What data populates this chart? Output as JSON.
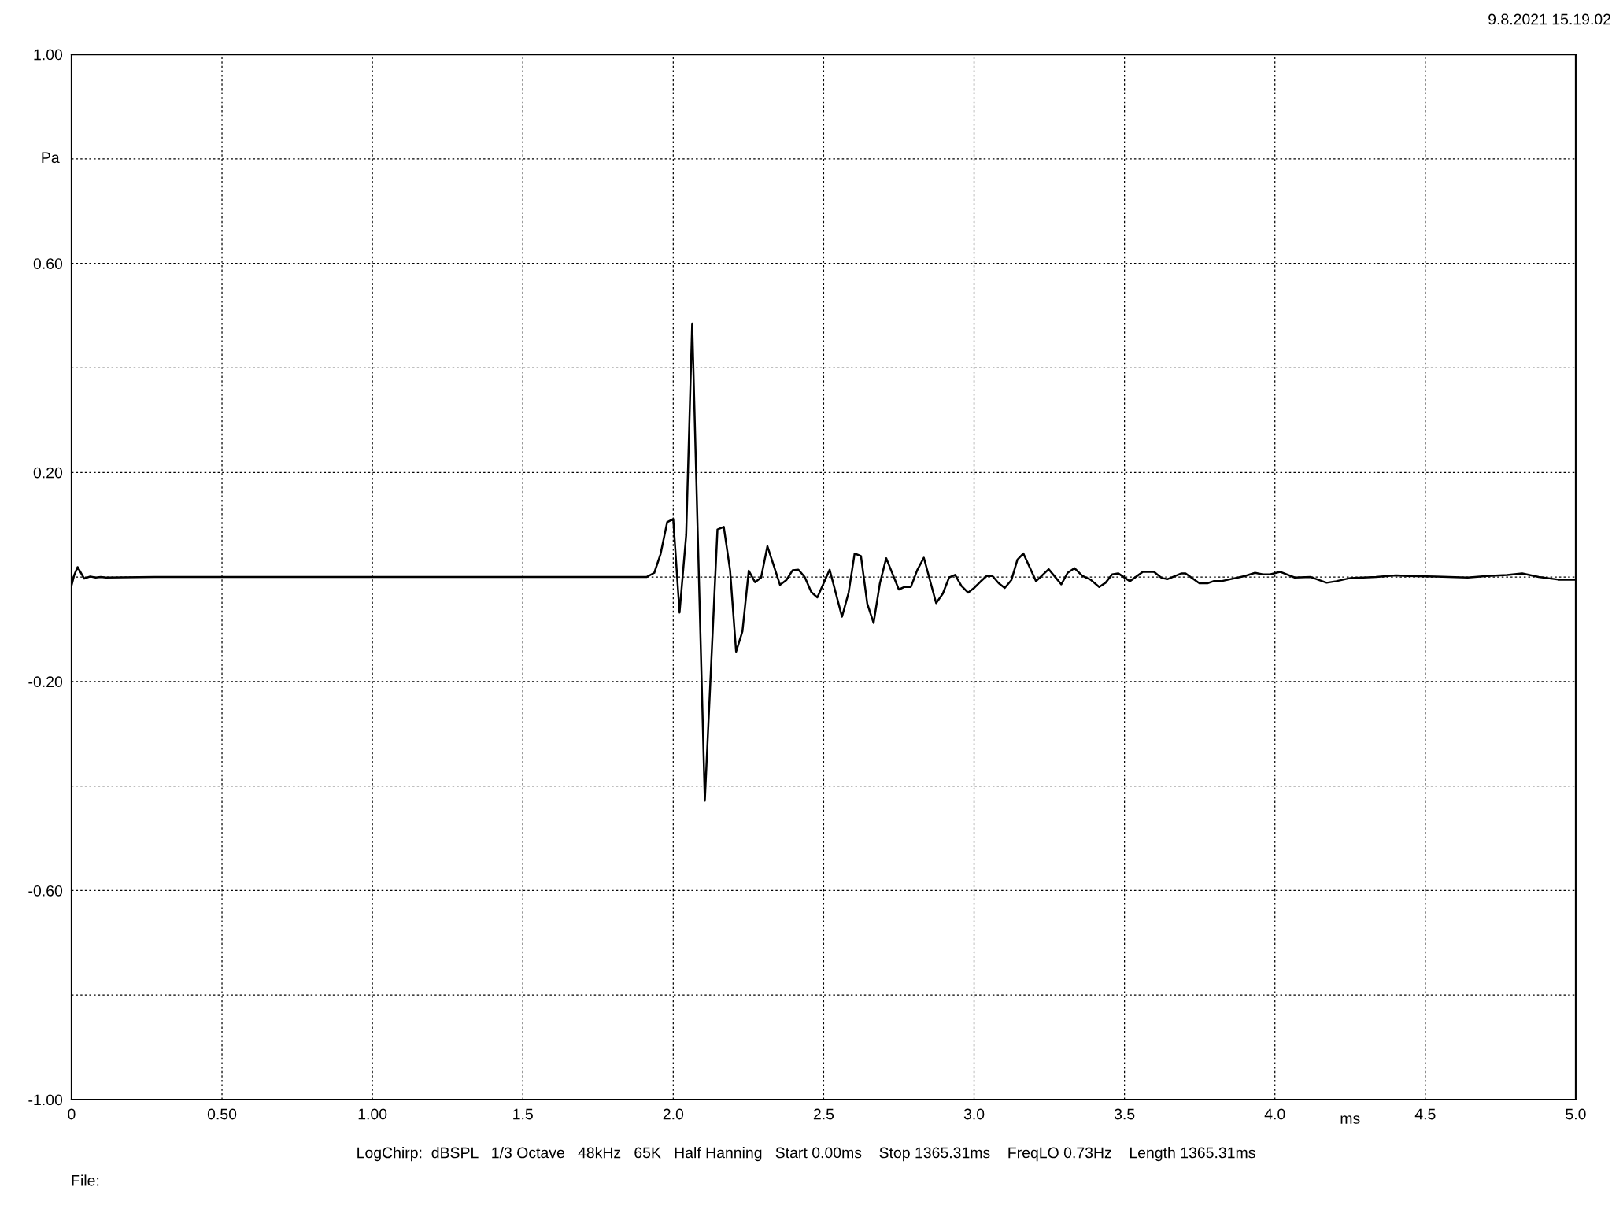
{
  "chart_data": {
    "type": "line",
    "xlabel": "ms",
    "ylabel": "Pa",
    "annotations": [
      "9.8.2021 15.19.02",
      "LogChirp:  dBSPL   1/3 Octave   48kHz   65K   Half Hanning   Start 0.00ms    Stop 1365.31ms    FreqLO 0.73Hz    Length 1365.31ms",
      "File:"
    ],
    "xlim": [
      0,
      5.0
    ],
    "ylim": [
      -1.0,
      1.0
    ],
    "xticks": [
      0,
      {
        "value": 0.5,
        "label": "0.50"
      },
      {
        "value": 1.0,
        "label": "1.00"
      },
      1.5,
      {
        "value": 2,
        "label": "2.0"
      },
      2.5,
      {
        "value": 3,
        "label": "3.0"
      },
      3.5,
      {
        "value": 4,
        "label": "4.0"
      },
      4.5,
      {
        "value": 5,
        "label": "5.0"
      }
    ],
    "yticks": [
      {
        "value": -1.0,
        "label": "-1.00"
      },
      {
        "value": -0.8,
        "label": null
      },
      {
        "value": -0.6,
        "label": "-0.60"
      },
      {
        "value": -0.4,
        "label": null
      },
      {
        "value": -0.2,
        "label": "-0.20"
      },
      {
        "value": 0,
        "label": null
      },
      {
        "value": 0.2,
        "label": "0.20"
      },
      {
        "value": 0.4,
        "label": null
      },
      {
        "value": 0.6,
        "label": "0.60"
      },
      {
        "value": 0.8,
        "label": null
      },
      {
        "value": 1.0,
        "label": "1.00"
      }
    ],
    "grid": true,
    "line_style": "solid",
    "marker": "none",
    "series": [
      {
        "color": "#000000",
        "x": [
          0,
          0.009,
          0.02,
          0.042,
          0.062,
          0.08,
          0.097,
          0.114,
          0.276,
          1.804,
          1.911,
          1.937,
          1.958,
          1.98,
          2.0,
          2.021,
          2.043,
          2.063,
          2.105,
          2.147,
          2.168,
          2.189,
          2.209,
          2.23,
          2.251,
          2.272,
          2.292,
          2.313,
          2.355,
          2.376,
          2.397,
          2.416,
          2.437,
          2.459,
          2.479,
          2.52,
          2.561,
          2.583,
          2.603,
          2.624,
          2.645,
          2.666,
          2.687,
          2.708,
          2.75,
          2.769,
          2.79,
          2.811,
          2.833,
          2.874,
          2.896,
          2.917,
          2.937,
          2.958,
          2.98,
          3.0,
          3.021,
          3.042,
          3.061,
          3.082,
          3.102,
          3.124,
          3.144,
          3.164,
          3.206,
          3.248,
          3.29,
          3.311,
          3.334,
          3.36,
          3.387,
          3.416,
          3.437,
          3.459,
          3.479,
          3.518,
          3.561,
          3.598,
          3.624,
          3.644,
          3.69,
          3.703,
          3.749,
          3.776,
          3.796,
          3.822,
          3.901,
          3.934,
          3.96,
          3.984,
          4.017,
          4.066,
          4.119,
          4.172,
          4.204,
          4.251,
          4.336,
          4.402,
          4.442,
          4.536,
          4.641,
          4.706,
          4.772,
          4.822,
          4.877,
          4.943,
          5.0
        ],
        "values": [
          -0.016,
          0.004,
          0.019,
          -0.003,
          0.001,
          -0.001,
          0,
          -0.001,
          0,
          0,
          0,
          0.008,
          0.044,
          0.105,
          0.111,
          -0.068,
          0.08,
          0.485,
          -0.428,
          0.091,
          0.096,
          0.013,
          -0.143,
          -0.104,
          0.012,
          -0.01,
          -0.001,
          0.059,
          -0.015,
          -0.006,
          0.013,
          0.014,
          0,
          -0.029,
          -0.039,
          0.014,
          -0.076,
          -0.03,
          0.045,
          0.04,
          -0.051,
          -0.088,
          -0.012,
          0.036,
          -0.024,
          -0.019,
          -0.019,
          0.013,
          0.037,
          -0.05,
          -0.032,
          -0.001,
          0.004,
          -0.017,
          -0.03,
          -0.021,
          -0.009,
          0.002,
          0.002,
          -0.012,
          -0.021,
          -0.006,
          0.033,
          0.045,
          -0.008,
          0.015,
          -0.014,
          0.008,
          0.017,
          0.002,
          -0.005,
          -0.019,
          -0.011,
          0.005,
          0.007,
          -0.008,
          0.01,
          0.01,
          -0.002,
          -0.004,
          0.007,
          0.007,
          -0.012,
          -0.012,
          -0.008,
          -0.008,
          0.002,
          0.008,
          0.005,
          0.005,
          0.01,
          -0.001,
          0,
          -0.011,
          -0.008,
          -0.002,
          0,
          0.003,
          0.002,
          0.001,
          -0.001,
          0.002,
          0.004,
          0.007,
          0,
          -0.005,
          -0.005
        ]
      }
    ]
  }
}
